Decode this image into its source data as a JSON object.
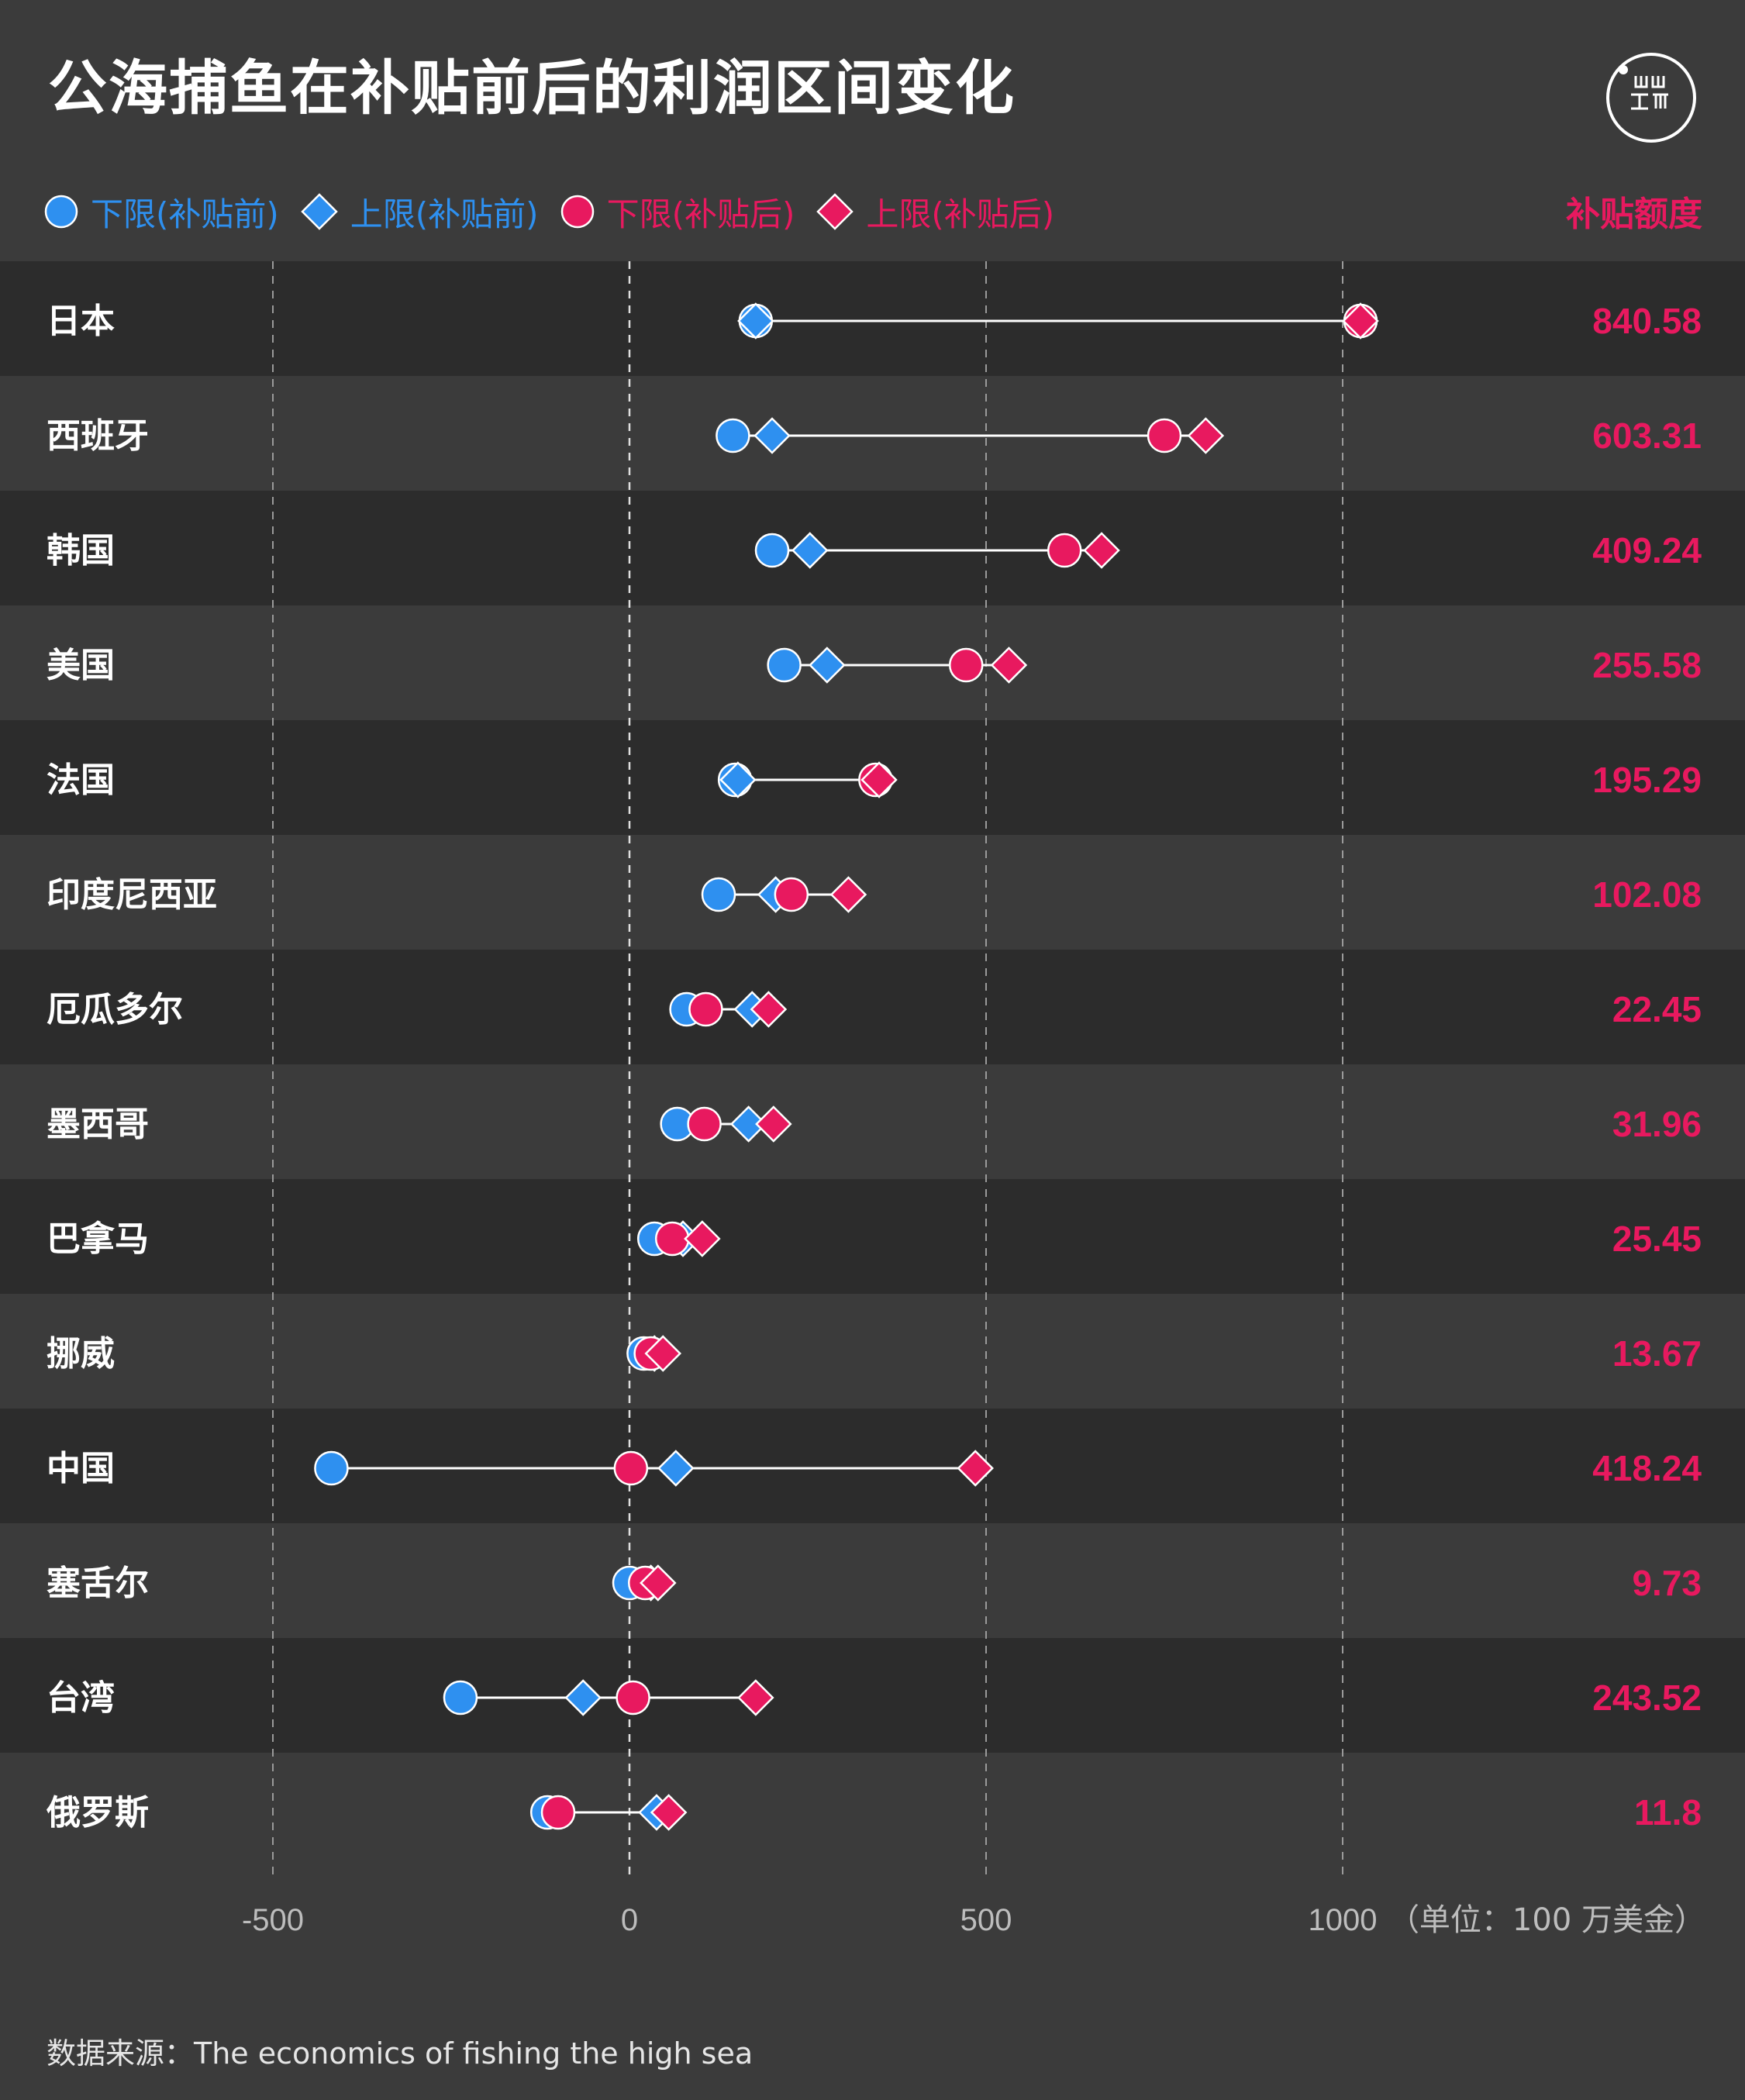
{
  "title": "公海捕鱼在补贴前后的利润区间变化",
  "logo": {
    "icon": "brand-logo-icon"
  },
  "legend": [
    {
      "label": "下限(补贴前)",
      "shape": "circle",
      "color": "#2e90f0"
    },
    {
      "label": "上限(补贴前)",
      "shape": "diamond",
      "color": "#2e90f0"
    },
    {
      "label": "下限(补贴后)",
      "shape": "circle",
      "color": "#e8195f"
    },
    {
      "label": "上限(补贴后)",
      "shape": "diamond",
      "color": "#e8195f"
    }
  ],
  "subsidy_header": "补贴额度",
  "source": "数据来源：The economics of fishing the high sea",
  "colors": {
    "before": "#2e90f0",
    "after": "#e8195f",
    "row_dark": "#2c2c2c",
    "row_light": "#3b3b3b",
    "connector": "#ffffff"
  },
  "chart_data": {
    "type": "dot-range",
    "x_ticks": [
      -500,
      0,
      500,
      1000
    ],
    "x_tick_labels": [
      "-500",
      "0",
      "500",
      "1000"
    ],
    "unit_label": "（单位：100 万美金）",
    "xlim": [
      -690,
      1250
    ],
    "rows": [
      {
        "country": "日本",
        "lower_before": 177,
        "upper_before": 177,
        "lower_after": 1025,
        "upper_after": 1025,
        "subsidy": "840.58"
      },
      {
        "country": "西班牙",
        "lower_before": 145,
        "upper_before": 200,
        "lower_after": 750,
        "upper_after": 808,
        "subsidy": "603.31"
      },
      {
        "country": "韩国",
        "lower_before": 200,
        "upper_before": 253,
        "lower_after": 610,
        "upper_after": 662,
        "subsidy": "409.24"
      },
      {
        "country": "美国",
        "lower_before": 217,
        "upper_before": 277,
        "lower_after": 472,
        "upper_after": 532,
        "subsidy": "255.58"
      },
      {
        "country": "法国",
        "lower_before": 148,
        "upper_before": 152,
        "lower_after": 345,
        "upper_after": 350,
        "subsidy": "195.29"
      },
      {
        "country": "印度尼西亚",
        "lower_before": 125,
        "upper_before": 205,
        "lower_after": 227,
        "upper_after": 307,
        "subsidy": "102.08"
      },
      {
        "country": "厄瓜多尔",
        "lower_before": 80,
        "upper_before": 172,
        "lower_after": 107,
        "upper_after": 195,
        "subsidy": "22.45"
      },
      {
        "country": "墨西哥",
        "lower_before": 67,
        "upper_before": 167,
        "lower_after": 105,
        "upper_after": 202,
        "subsidy": "31.96"
      },
      {
        "country": "巴拿马",
        "lower_before": 35,
        "upper_before": 75,
        "lower_after": 60,
        "upper_after": 102,
        "subsidy": "25.45"
      },
      {
        "country": "挪威",
        "lower_before": 20,
        "upper_before": 35,
        "lower_after": 30,
        "upper_after": 47,
        "subsidy": "13.67"
      },
      {
        "country": "中国",
        "lower_before": -418,
        "upper_before": 65,
        "lower_after": 2,
        "upper_after": 485,
        "subsidy": "418.24"
      },
      {
        "country": "塞舌尔",
        "lower_before": 0,
        "upper_before": 30,
        "lower_after": 22,
        "upper_after": 40,
        "subsidy": "9.73"
      },
      {
        "country": "台湾",
        "lower_before": -237,
        "upper_before": -65,
        "lower_after": 5,
        "upper_after": 177,
        "subsidy": "243.52"
      },
      {
        "country": "俄罗斯",
        "lower_before": -115,
        "upper_before": 38,
        "lower_after": -100,
        "upper_after": 55,
        "subsidy": "11.8"
      }
    ]
  }
}
